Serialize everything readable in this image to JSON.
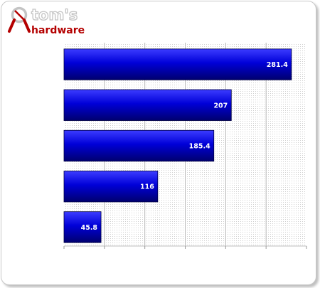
{
  "logo": {
    "line1": "tom's",
    "line2": "hardware",
    "color_top": "#c4c4c4",
    "color_bottom": "#b40000"
  },
  "chart_data": {
    "type": "bar",
    "orientation": "horizontal",
    "categories": [
      "",
      "",
      "",
      "",
      ""
    ],
    "values": [
      281.4,
      207,
      185.4,
      116,
      45.8
    ],
    "labels": [
      "281.4",
      "207",
      "185.4",
      "116",
      "45.8"
    ],
    "title": "",
    "xlabel": "",
    "ylabel": "",
    "xlim": [
      0,
      300
    ],
    "grid": true,
    "legend": "none",
    "bar_color": "#0000d8",
    "label_color": "#ffffff"
  }
}
